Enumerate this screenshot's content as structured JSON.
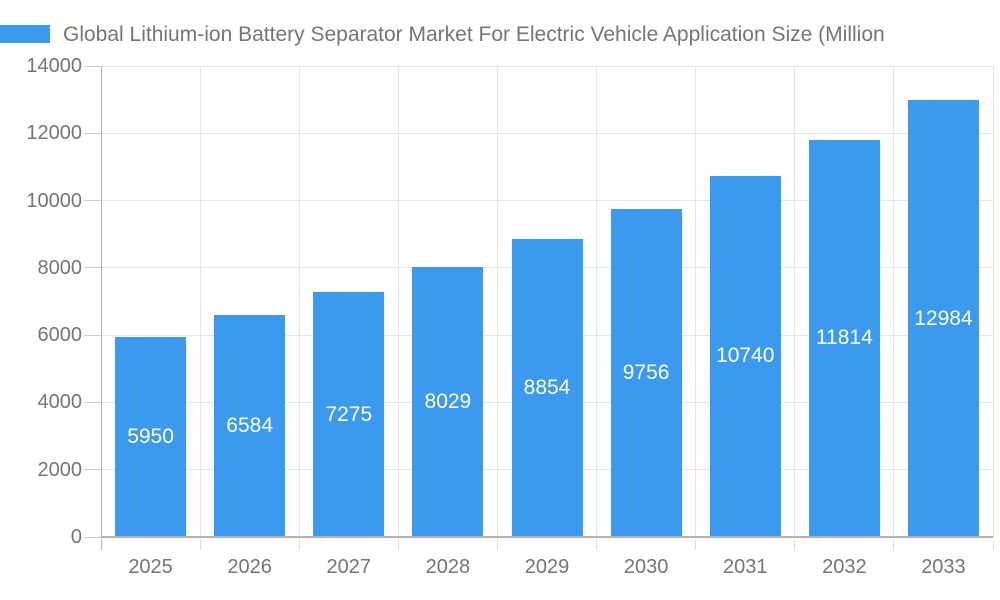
{
  "legend": {
    "swatch_color": "#3b99ee"
  },
  "chart_data": {
    "type": "bar",
    "title": "Global Lithium-ion Battery Separator Market For Electric Vehicle Application Size (Million",
    "categories": [
      "2025",
      "2026",
      "2027",
      "2028",
      "2029",
      "2030",
      "2031",
      "2032",
      "2033"
    ],
    "values": [
      5950,
      6584,
      7275,
      8029,
      8854,
      9756,
      10740,
      11814,
      12984
    ],
    "bar_labels": [
      "5950",
      "6584",
      "7275",
      "8029",
      "8854",
      "9756",
      "10740",
      "11814",
      "12984"
    ],
    "xlabel": "",
    "ylabel": "",
    "ylim": [
      0,
      14000
    ],
    "ytick_step": 2000,
    "ytick_labels": [
      "0",
      "2000",
      "4000",
      "6000",
      "8000",
      "10000",
      "12000",
      "14000"
    ],
    "grid": "on",
    "legend_position": "top-left",
    "bar_color": "#3b99ee",
    "value_label_color": "#ffffff",
    "axis_text_color": "#757575",
    "gridline_color": "#e6e6e6",
    "axis_line_color": "#b3b3b3"
  }
}
